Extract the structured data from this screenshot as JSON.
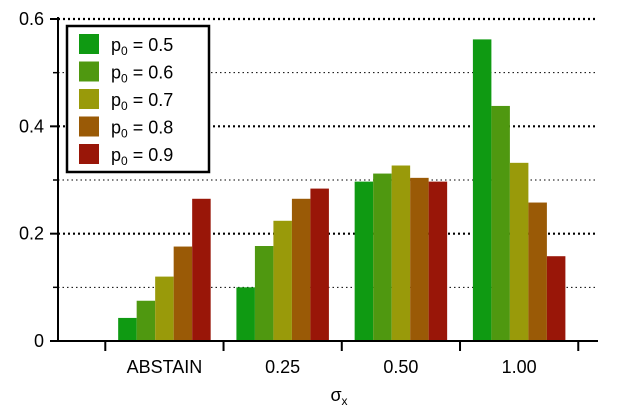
{
  "chart_data": {
    "type": "bar",
    "title": "",
    "xlabel": "σ",
    "xlabel_sub": "x",
    "ylabel": "",
    "ylim": [
      0,
      0.6
    ],
    "yticks": [
      0,
      0.2,
      0.4,
      0.6
    ],
    "ytick_labels": [
      "0",
      "0.2",
      "0.4",
      "0.6"
    ],
    "grid": {
      "major_y": [
        0.2,
        0.4,
        0.6
      ],
      "minor_y": [
        0.1,
        0.3,
        0.5
      ],
      "style": "dotted"
    },
    "legend_position": "top-left",
    "categories": [
      "ABSTAIN",
      "0.25",
      "0.50",
      "1.00"
    ],
    "series": [
      {
        "name": "p0 = 0.5",
        "label_main": "p",
        "label_sub": "0",
        "label_value": " = 0.5",
        "color": "#0f9a12",
        "values": [
          0.043,
          0.1,
          0.297,
          0.562
        ]
      },
      {
        "name": "p0 = 0.6",
        "label_main": "p",
        "label_sub": "0",
        "label_value": " = 0.6",
        "color": "#4f9810",
        "values": [
          0.075,
          0.177,
          0.312,
          0.438
        ]
      },
      {
        "name": "p0 = 0.7",
        "label_main": "p",
        "label_sub": "0",
        "label_value": " = 0.7",
        "color": "#999a0a",
        "values": [
          0.12,
          0.224,
          0.327,
          0.332
        ]
      },
      {
        "name": "p0 = 0.8",
        "label_main": "p",
        "label_sub": "0",
        "label_value": " = 0.8",
        "color": "#9a5a06",
        "values": [
          0.176,
          0.265,
          0.304,
          0.258
        ]
      },
      {
        "name": "p0 = 0.9",
        "label_main": "p",
        "label_sub": "0",
        "label_value": " = 0.9",
        "color": "#991608",
        "values": [
          0.265,
          0.284,
          0.297,
          0.158
        ]
      }
    ]
  }
}
